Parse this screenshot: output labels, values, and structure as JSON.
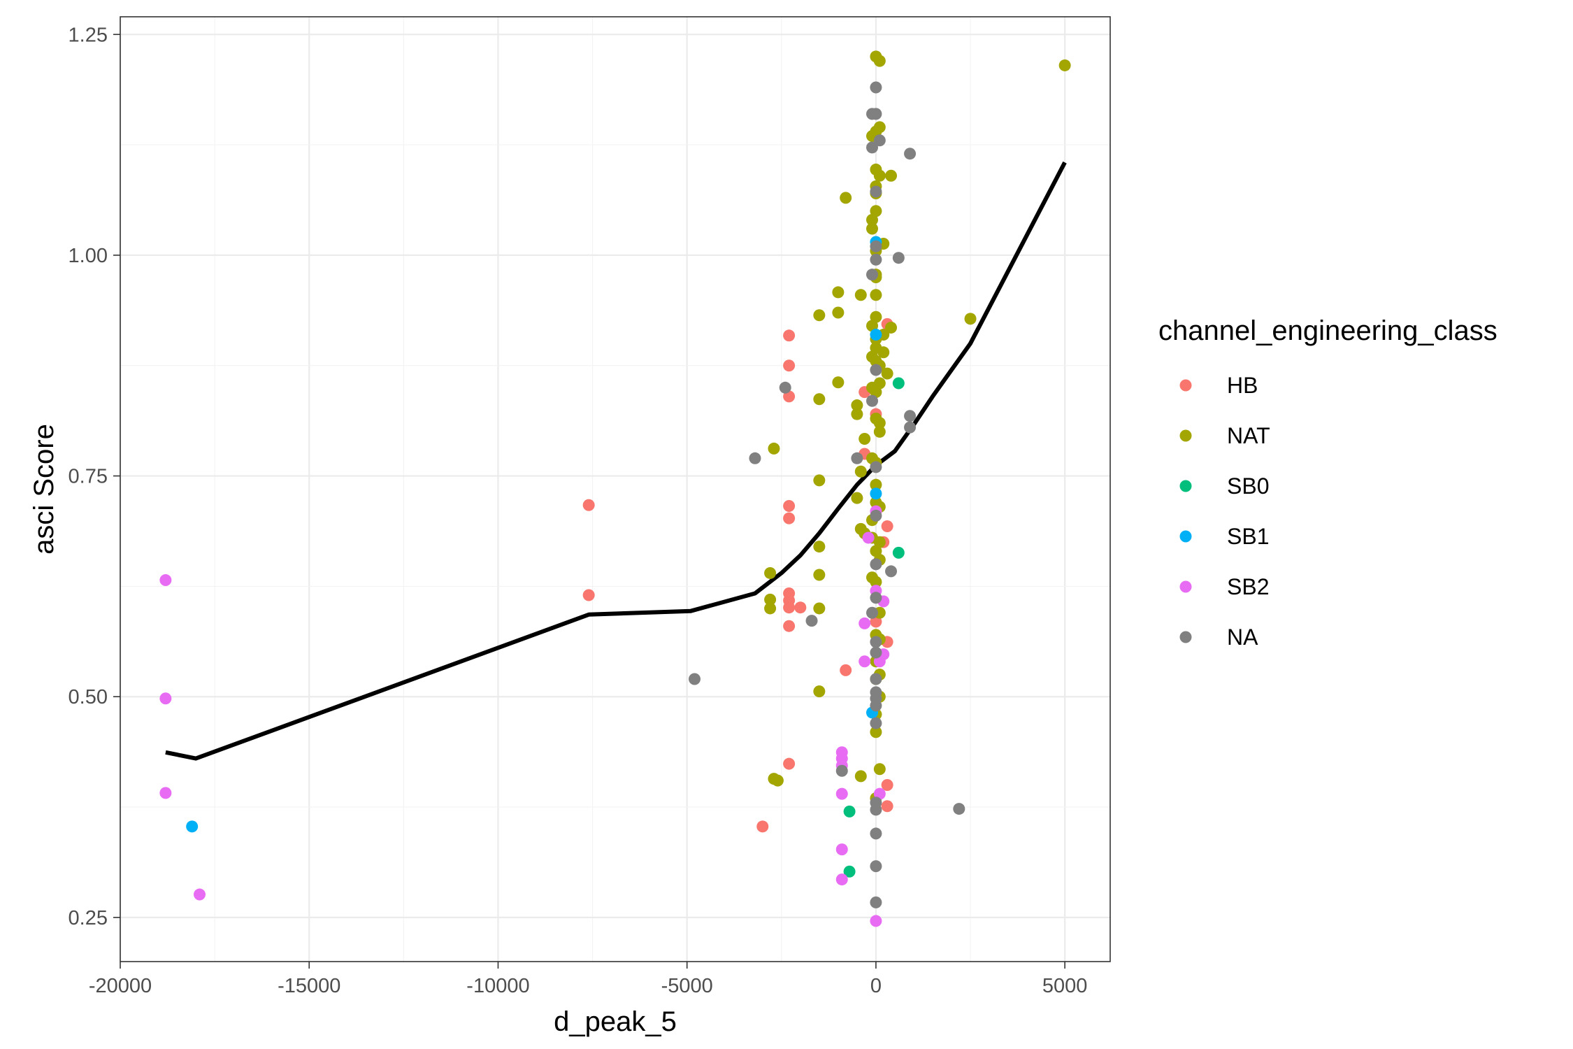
{
  "chart_data": {
    "type": "scatter",
    "title": "",
    "xlabel": "d_peak_5",
    "ylabel": "asci Score",
    "xlim": [
      -20000,
      6200
    ],
    "ylim": [
      0.2,
      1.27
    ],
    "xticks": [
      -20000,
      -15000,
      -10000,
      -5000,
      0,
      5000
    ],
    "xtick_labels": [
      "-20000",
      "-15000",
      "-10000",
      "-5000",
      "0",
      "5000"
    ],
    "yticks": [
      0.25,
      0.5,
      0.75,
      1.0,
      1.25
    ],
    "ytick_labels": [
      "0.25",
      "0.50",
      "0.75",
      "1.00",
      "1.25"
    ],
    "grid": true,
    "legend": {
      "title": "channel_engineering_class",
      "position": "right",
      "entries": [
        {
          "label": "HB",
          "color": "#F8766D"
        },
        {
          "label": "NAT",
          "color": "#A3A500"
        },
        {
          "label": "SB0",
          "color": "#00BF7D"
        },
        {
          "label": "SB1",
          "color": "#00B0F6"
        },
        {
          "label": "SB2",
          "color": "#E76BF3"
        },
        {
          "label": "NA",
          "color": "#808080"
        }
      ]
    },
    "series": [
      {
        "name": "HB",
        "color": "#F8766D",
        "points": [
          [
            -7600,
            0.717
          ],
          [
            -7600,
            0.615
          ],
          [
            -2300,
            0.909
          ],
          [
            -2300,
            0.875
          ],
          [
            -2300,
            0.84
          ],
          [
            -2300,
            0.716
          ],
          [
            -2300,
            0.702
          ],
          [
            -2300,
            0.617
          ],
          [
            -2300,
            0.609
          ],
          [
            -2300,
            0.601
          ],
          [
            -2000,
            0.601
          ],
          [
            -2300,
            0.58
          ],
          [
            -2300,
            0.424
          ],
          [
            -3000,
            0.353
          ],
          [
            -800,
            0.53
          ],
          [
            -300,
            0.845
          ],
          [
            -300,
            0.775
          ],
          [
            0,
            0.82
          ],
          [
            300,
            0.922
          ],
          [
            300,
            0.693
          ],
          [
            200,
            0.675
          ],
          [
            300,
            0.562
          ],
          [
            0,
            0.585
          ],
          [
            300,
            0.4
          ],
          [
            300,
            0.376
          ]
        ]
      },
      {
        "name": "NAT",
        "color": "#A3A500",
        "points": [
          [
            5000,
            1.215
          ],
          [
            0,
            1.225
          ],
          [
            100,
            1.22
          ],
          [
            0,
            1.14
          ],
          [
            100,
            1.145
          ],
          [
            -100,
            1.135
          ],
          [
            0,
            1.097
          ],
          [
            100,
            1.09
          ],
          [
            400,
            1.09
          ],
          [
            0,
            1.078
          ],
          [
            0,
            1.07
          ],
          [
            -800,
            1.065
          ],
          [
            0,
            1.05
          ],
          [
            -100,
            1.04
          ],
          [
            -100,
            1.03
          ],
          [
            200,
            1.013
          ],
          [
            0,
            1.005
          ],
          [
            0,
            0.978
          ],
          [
            0,
            0.975
          ],
          [
            -1000,
            0.958
          ],
          [
            -400,
            0.955
          ],
          [
            0,
            0.955
          ],
          [
            -1000,
            0.935
          ],
          [
            -1500,
            0.932
          ],
          [
            2500,
            0.928
          ],
          [
            0,
            0.93
          ],
          [
            -100,
            0.92
          ],
          [
            400,
            0.918
          ],
          [
            200,
            0.91
          ],
          [
            0,
            0.905
          ],
          [
            0,
            0.895
          ],
          [
            200,
            0.89
          ],
          [
            -100,
            0.885
          ],
          [
            0,
            0.88
          ],
          [
            100,
            0.875
          ],
          [
            300,
            0.866
          ],
          [
            -1000,
            0.856
          ],
          [
            100,
            0.855
          ],
          [
            -100,
            0.85
          ],
          [
            0,
            0.845
          ],
          [
            -1500,
            0.837
          ],
          [
            -500,
            0.83
          ],
          [
            -500,
            0.82
          ],
          [
            0,
            0.815
          ],
          [
            100,
            0.81
          ],
          [
            100,
            0.8
          ],
          [
            -300,
            0.792
          ],
          [
            -2700,
            0.781
          ],
          [
            -100,
            0.77
          ],
          [
            0,
            0.765
          ],
          [
            -400,
            0.755
          ],
          [
            -1500,
            0.745
          ],
          [
            0,
            0.74
          ],
          [
            -500,
            0.725
          ],
          [
            0,
            0.72
          ],
          [
            100,
            0.715
          ],
          [
            -100,
            0.7
          ],
          [
            -400,
            0.69
          ],
          [
            -300,
            0.685
          ],
          [
            -100,
            0.68
          ],
          [
            100,
            0.675
          ],
          [
            -1500,
            0.67
          ],
          [
            0,
            0.665
          ],
          [
            100,
            0.655
          ],
          [
            -2800,
            0.64
          ],
          [
            -1500,
            0.638
          ],
          [
            -100,
            0.635
          ],
          [
            0,
            0.63
          ],
          [
            -2800,
            0.61
          ],
          [
            -2800,
            0.6
          ],
          [
            -1500,
            0.6
          ],
          [
            100,
            0.595
          ],
          [
            0,
            0.57
          ],
          [
            100,
            0.565
          ],
          [
            0,
            0.54
          ],
          [
            100,
            0.525
          ],
          [
            0,
            0.52
          ],
          [
            -1500,
            0.506
          ],
          [
            100,
            0.5
          ],
          [
            0,
            0.48
          ],
          [
            0,
            0.46
          ],
          [
            100,
            0.418
          ],
          [
            -400,
            0.41
          ],
          [
            -2700,
            0.407
          ],
          [
            -2600,
            0.405
          ],
          [
            0,
            0.385
          ]
        ]
      },
      {
        "name": "SB0",
        "color": "#00BF7D",
        "points": [
          [
            600,
            0.855
          ],
          [
            600,
            0.663
          ],
          [
            -700,
            0.37
          ],
          [
            -700,
            0.302
          ]
        ]
      },
      {
        "name": "SB1",
        "color": "#00B0F6",
        "points": [
          [
            0,
            1.015
          ],
          [
            0,
            0.91
          ],
          [
            0,
            0.73
          ],
          [
            -100,
            0.482
          ],
          [
            -18100,
            0.353
          ]
        ]
      },
      {
        "name": "SB2",
        "color": "#E76BF3",
        "points": [
          [
            -18800,
            0.632
          ],
          [
            -18800,
            0.498
          ],
          [
            -18800,
            0.391
          ],
          [
            -17900,
            0.276
          ],
          [
            0,
            0.71
          ],
          [
            0,
            0.62
          ],
          [
            200,
            0.608
          ],
          [
            -300,
            0.583
          ],
          [
            200,
            0.548
          ],
          [
            100,
            0.54
          ],
          [
            -300,
            0.54
          ],
          [
            -900,
            0.437
          ],
          [
            -900,
            0.43
          ],
          [
            -900,
            0.422
          ],
          [
            -900,
            0.39
          ],
          [
            100,
            0.39
          ],
          [
            -900,
            0.327
          ],
          [
            -900,
            0.293
          ],
          [
            0,
            0.246
          ],
          [
            -200,
            0.68
          ]
        ]
      },
      {
        "name": "NA",
        "color": "#808080",
        "points": [
          [
            0,
            1.19
          ],
          [
            -100,
            1.16
          ],
          [
            0,
            1.16
          ],
          [
            100,
            1.13
          ],
          [
            -100,
            1.122
          ],
          [
            900,
            1.115
          ],
          [
            0,
            1.072
          ],
          [
            0,
            1.01
          ],
          [
            0,
            0.995
          ],
          [
            600,
            0.997
          ],
          [
            -100,
            0.978
          ],
          [
            -2400,
            0.85
          ],
          [
            0,
            0.87
          ],
          [
            -100,
            0.835
          ],
          [
            900,
            0.818
          ],
          [
            900,
            0.805
          ],
          [
            -3200,
            0.77
          ],
          [
            -500,
            0.77
          ],
          [
            0,
            0.76
          ],
          [
            0,
            0.705
          ],
          [
            400,
            0.642
          ],
          [
            0,
            0.65
          ],
          [
            -1700,
            0.586
          ],
          [
            0,
            0.612
          ],
          [
            -100,
            0.595
          ],
          [
            0,
            0.562
          ],
          [
            0,
            0.55
          ],
          [
            0,
            0.52
          ],
          [
            -4800,
            0.52
          ],
          [
            0,
            0.505
          ],
          [
            0,
            0.498
          ],
          [
            0,
            0.49
          ],
          [
            0,
            0.47
          ],
          [
            -900,
            0.416
          ],
          [
            0,
            0.38
          ],
          [
            0,
            0.372
          ],
          [
            2200,
            0.373
          ],
          [
            0,
            0.345
          ],
          [
            0,
            0.308
          ],
          [
            0,
            0.267
          ]
        ]
      }
    ],
    "trend_line": {
      "color": "#000000",
      "x": [
        -18800,
        -18000,
        -7600,
        -4900,
        -3200,
        -2500,
        -2000,
        -1500,
        -1000,
        -500,
        0,
        500,
        1000,
        1500,
        2000,
        2500,
        5000
      ],
      "y": [
        0.437,
        0.43,
        0.593,
        0.597,
        0.617,
        0.64,
        0.66,
        0.685,
        0.713,
        0.74,
        0.762,
        0.778,
        0.808,
        0.84,
        0.87,
        0.9,
        1.105
      ]
    }
  }
}
